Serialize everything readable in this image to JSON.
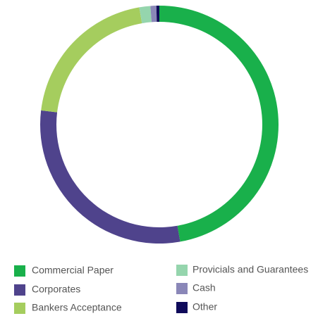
{
  "chart_data": {
    "type": "donut",
    "categories": [
      "Commercial Paper",
      "Corporates",
      "Bankers Acceptance",
      "Provicials and Guarantees",
      "Cash",
      "Other"
    ],
    "values": [
      47.2,
      29.7,
      20.4,
      1.5,
      0.8,
      0.4
    ],
    "colors": [
      "#19b04b",
      "#4f438c",
      "#a5cd5e",
      "#95d5ad",
      "#8a87b8",
      "#0f0a5a"
    ]
  }
}
